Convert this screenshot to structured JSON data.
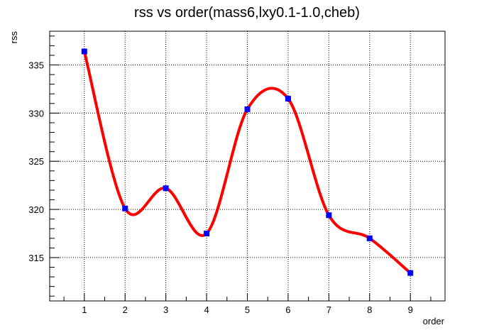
{
  "chart_data": {
    "type": "line",
    "title": "rss vs order(mass6,lxy0.1-1.0,cheb)",
    "xlabel": "order",
    "ylabel": "rss",
    "xlim": [
      0.15,
      9.85
    ],
    "ylim": [
      310.5,
      338.5
    ],
    "xticks": [
      1,
      2,
      3,
      4,
      5,
      6,
      7,
      8,
      9
    ],
    "yticks": [
      315,
      320,
      325,
      330,
      335
    ],
    "grid": true,
    "series": [
      {
        "x": [
          1,
          2,
          3,
          4,
          5,
          6,
          7,
          8,
          9
        ],
        "y": [
          336.4,
          320.1,
          322.2,
          317.5,
          330.4,
          331.5,
          319.4,
          317.0,
          313.4
        ],
        "line_color": "#ff0000",
        "marker_color": "#0000ff",
        "marker": "square",
        "smooth": true
      }
    ]
  }
}
